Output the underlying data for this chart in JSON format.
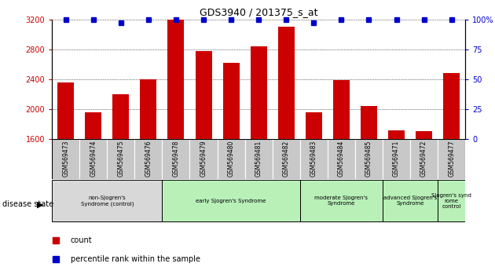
{
  "title": "GDS3940 / 201375_s_at",
  "samples": [
    "GSM569473",
    "GSM569474",
    "GSM569475",
    "GSM569476",
    "GSM569478",
    "GSM569479",
    "GSM569480",
    "GSM569481",
    "GSM569482",
    "GSM569483",
    "GSM569484",
    "GSM569485",
    "GSM569471",
    "GSM569472",
    "GSM569477"
  ],
  "counts": [
    2360,
    1960,
    2200,
    2400,
    3200,
    2780,
    2620,
    2840,
    3100,
    1960,
    2390,
    2040,
    1720,
    1710,
    2480
  ],
  "percentiles": [
    100,
    100,
    97,
    100,
    100,
    100,
    100,
    100,
    100,
    97,
    100,
    100,
    100,
    100,
    100
  ],
  "ymin": 1600,
  "ymax": 3200,
  "yticks": [
    1600,
    2000,
    2400,
    2800,
    3200
  ],
  "y2ticks": [
    0,
    25,
    50,
    75,
    100
  ],
  "bar_color": "#cc0000",
  "pct_color": "#0000cc",
  "groups": [
    {
      "label": "non-Sjogren's\nSyndrome (control)",
      "start": 0,
      "end": 4,
      "bg": "#d8d8d8"
    },
    {
      "label": "early Sjogren's Syndrome",
      "start": 4,
      "end": 9,
      "bg": "#b8f0b8"
    },
    {
      "label": "moderate Sjogren's\nSyndrome",
      "start": 9,
      "end": 12,
      "bg": "#b8f0b8"
    },
    {
      "label": "advanced Sjogren's\nSyndrome",
      "start": 12,
      "end": 14,
      "bg": "#b8f0b8"
    },
    {
      "label": "Sjogren's synd\nrome\ncontrol",
      "start": 14,
      "end": 15,
      "bg": "#b8f0b8"
    }
  ],
  "disease_state_label": "disease state",
  "legend_count_label": "count",
  "legend_pct_label": "percentile rank within the sample",
  "sample_bg": "#c8c8c8"
}
